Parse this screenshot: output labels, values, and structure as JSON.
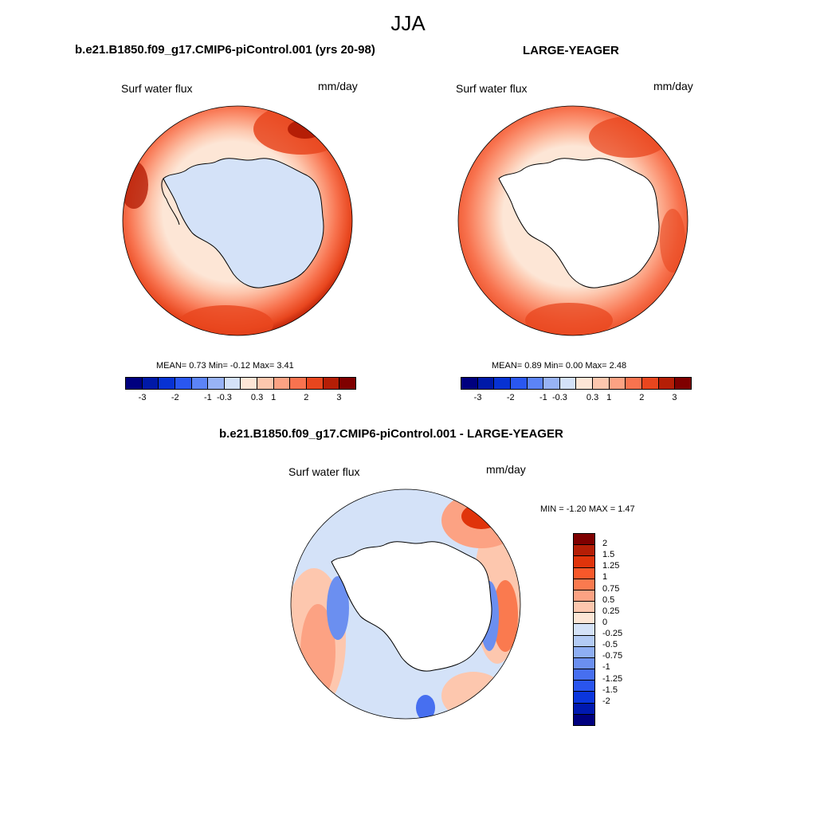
{
  "title": "JJA",
  "panels": [
    {
      "title": "b.e21.B1850.f09_g17.CMIP6-piControl.001 (yrs 20-98)",
      "variable": "Surf water flux",
      "units": "mm/day",
      "stats": "MEAN=   0.73  Min=   -0.12  Max=    3.41",
      "mean": 0.73,
      "min": -0.12,
      "max": 3.41
    },
    {
      "title": "LARGE-YEAGER",
      "variable": "Surf water flux",
      "units": "mm/day",
      "stats": "MEAN=   0.89  Min=    0.00  Max=    2.48",
      "mean": 0.89,
      "min": 0.0,
      "max": 2.48
    },
    {
      "title": "b.e21.B1850.f09_g17.CMIP6-piControl.001 - LARGE-YEAGER",
      "variable": "Surf water flux",
      "units": "mm/day",
      "stats": "MIN =  -1.20 MAX =    1.47",
      "min": -1.2,
      "max": 1.47
    }
  ],
  "colorbar_top": {
    "colors": [
      "#00007f",
      "#0019a8",
      "#0732d3",
      "#2a57f0",
      "#5c84f7",
      "#98b3f5",
      "#d4e2f8",
      "#fde6d6",
      "#fdc7ae",
      "#fca283",
      "#f8734f",
      "#e8461e",
      "#b51e06",
      "#7f0000"
    ],
    "tick_labels": [
      "-3",
      "-2",
      "-1",
      "-0.3",
      "0.3",
      "1",
      "2",
      "3"
    ]
  },
  "colorbar_diff": {
    "colors": [
      "#7f0000",
      "#b51e06",
      "#e0340b",
      "#f8582a",
      "#fa7a4f",
      "#fca283",
      "#fdc7ae",
      "#fde6d6",
      "#d4e2f8",
      "#b3cbf5",
      "#8eaef3",
      "#6b8ff0",
      "#476ff0",
      "#2a55ee",
      "#0b36dd",
      "#0019b0",
      "#00007f"
    ],
    "tick_labels": [
      "2",
      "1.5",
      "1.25",
      "1",
      "0.75",
      "0.5",
      "0.25",
      "0",
      "-0.25",
      "-0.5",
      "-0.75",
      "-1",
      "-1.25",
      "-1.5",
      "-2"
    ]
  }
}
